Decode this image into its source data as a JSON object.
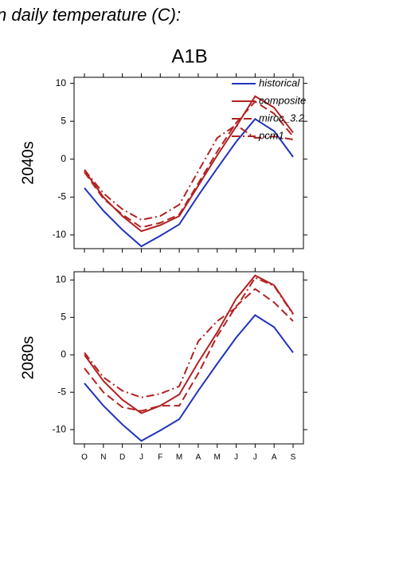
{
  "chart_data": [
    {
      "type": "line",
      "title": "n daily temperature (C):",
      "subtitle": "A1B",
      "ylabel": "2040s",
      "categories": [
        "O",
        "N",
        "D",
        "J",
        "F",
        "M",
        "A",
        "M",
        "J",
        "J",
        "A",
        "S"
      ],
      "ylim": [
        -11.8,
        10.8
      ],
      "yticks": [
        -10,
        -5,
        0,
        5,
        10
      ],
      "legend": "upper right",
      "series": [
        {
          "name": "historical",
          "color": "#2233bb",
          "linestyle": "solid",
          "values": [
            -3.8,
            -6.8,
            -9.3,
            -11.5,
            -10.1,
            -8.6,
            -4.8,
            -1.2,
            2.3,
            5.3,
            3.7,
            0.3
          ]
        },
        {
          "name": "composite",
          "color": "#b22222",
          "linestyle": "solid",
          "values": [
            -1.5,
            -5.0,
            -7.5,
            -9.5,
            -8.7,
            -7.5,
            -3.5,
            0.5,
            4.3,
            8.3,
            6.8,
            3.5
          ]
        },
        {
          "name": "miroc_3.2",
          "color": "#b22222",
          "linestyle": "dashed",
          "values": [
            -1.7,
            -5.2,
            -7.3,
            -9.0,
            -8.4,
            -7.3,
            -3.2,
            1.0,
            4.8,
            7.6,
            6.0,
            3.0
          ]
        },
        {
          "name": "pcm1",
          "color": "#b22222",
          "linestyle": "dashdot",
          "values": [
            -1.4,
            -4.5,
            -6.6,
            -8.0,
            -7.5,
            -6.0,
            -1.6,
            2.8,
            4.5,
            2.8,
            3.0,
            2.6
          ]
        }
      ]
    },
    {
      "type": "line",
      "ylabel": "2080s",
      "categories": [
        "O",
        "N",
        "D",
        "J",
        "F",
        "M",
        "A",
        "M",
        "J",
        "J",
        "A",
        "S"
      ],
      "ylim": [
        -11.9,
        11.1
      ],
      "yticks": [
        -10,
        -5,
        0,
        5,
        10
      ],
      "series": [
        {
          "color": "#2233bb",
          "linestyle": "solid",
          "values": [
            -3.8,
            -6.8,
            -9.3,
            -11.5,
            -10.1,
            -8.6,
            -4.8,
            -1.2,
            2.3,
            5.3,
            3.7,
            0.3
          ]
        },
        {
          "color": "#b22222",
          "linestyle": "solid",
          "values": [
            0.0,
            -3.5,
            -6.0,
            -7.8,
            -6.8,
            -5.3,
            -1.0,
            3.0,
            7.5,
            10.6,
            9.3,
            5.5
          ]
        },
        {
          "color": "#b22222",
          "linestyle": "dashed",
          "values": [
            -1.8,
            -5.0,
            -7.0,
            -7.5,
            -6.8,
            -6.8,
            -2.5,
            2.5,
            6.5,
            8.8,
            7.0,
            4.5
          ]
        },
        {
          "color": "#b22222",
          "linestyle": "dashdot",
          "values": [
            0.3,
            -3.0,
            -4.8,
            -5.7,
            -5.2,
            -4.2,
            1.8,
            4.5,
            6.3,
            10.3,
            9.2,
            5.4
          ]
        }
      ]
    }
  ]
}
